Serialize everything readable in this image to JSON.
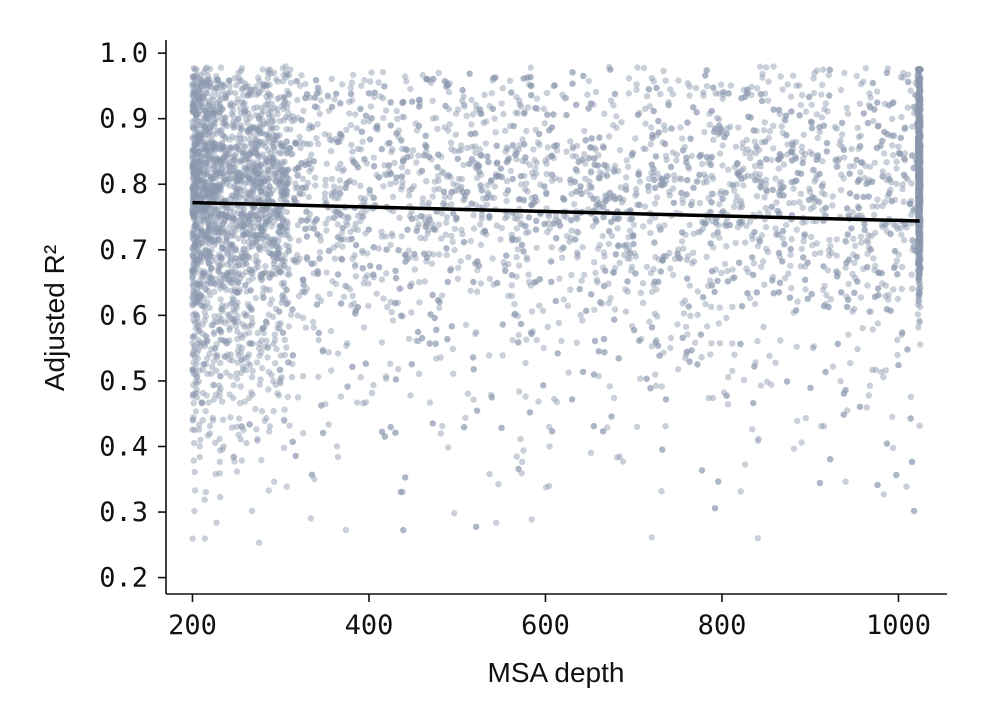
{
  "colors": {
    "points": "#8a96ad",
    "fit_line": "#000000",
    "axis": "#111111"
  },
  "chart_data": {
    "type": "scatter",
    "title": "",
    "xlabel": "MSA depth",
    "ylabel": "Adjusted R²",
    "xlim": [
      170,
      1055
    ],
    "ylim": [
      0.175,
      1.02
    ],
    "xticks": [
      200,
      400,
      600,
      800,
      1000
    ],
    "yticks": [
      0.2,
      0.3,
      0.4,
      0.5,
      0.6,
      0.7,
      0.8,
      0.9,
      1.0
    ],
    "xtick_labels": [
      "200",
      "400",
      "600",
      "800",
      "1000"
    ],
    "ytick_labels": [
      "0.2",
      "0.3",
      "0.4",
      "0.5",
      "0.6",
      "0.7",
      "0.8",
      "0.9",
      "1.0"
    ],
    "grid": false,
    "legend": "none",
    "point_alpha": 0.45,
    "series": [
      {
        "type": "scatter",
        "x_range": [
          200,
          1024
        ],
        "y_range": [
          0.2,
          0.99
        ],
        "approx_count": 6000,
        "density_note_values": {
          "dense_band_x": [
            200,
            290
          ],
          "dense_column_x": 1024,
          "mean_y": 0.76
        }
      },
      {
        "type": "line",
        "x": [
          200,
          1024
        ],
        "y": [
          0.772,
          0.744
        ]
      }
    ]
  }
}
